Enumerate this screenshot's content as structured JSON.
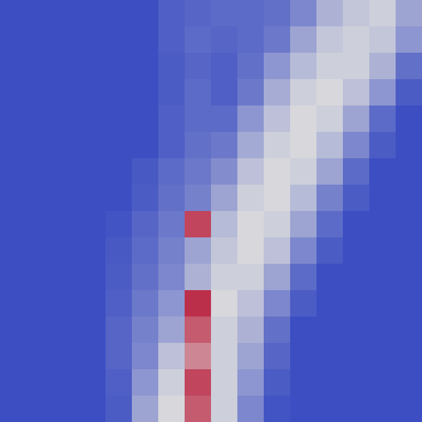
{
  "chart_data": {
    "type": "heatmap",
    "tick_labels": false,
    "grid": false,
    "zlim": [
      0,
      1
    ],
    "cells": [
      [
        0,
        0,
        0,
        0,
        0,
        0,
        0.06,
        0.08,
        0.1,
        0.1,
        0.12,
        0.2,
        0.35,
        0.42,
        0.45,
        0.3
      ],
      [
        0,
        0,
        0,
        0,
        0,
        0,
        0.06,
        0.1,
        0.08,
        0.1,
        0.15,
        0.3,
        0.42,
        0.45,
        0.42,
        0.25
      ],
      [
        0,
        0,
        0,
        0,
        0,
        0,
        0.05,
        0.08,
        0.06,
        0.12,
        0.25,
        0.38,
        0.45,
        0.45,
        0.35,
        0.12
      ],
      [
        0,
        0,
        0,
        0,
        0,
        0,
        0.05,
        0.1,
        0.06,
        0.15,
        0.33,
        0.45,
        0.48,
        0.4,
        0.25,
        0.05
      ],
      [
        0,
        0,
        0,
        0,
        0,
        0,
        0.06,
        0.1,
        0.1,
        0.25,
        0.4,
        0.48,
        0.45,
        0.3,
        0.1,
        0
      ],
      [
        0,
        0,
        0,
        0,
        0,
        0,
        0.06,
        0.12,
        0.15,
        0.32,
        0.45,
        0.48,
        0.38,
        0.2,
        0.05,
        0
      ],
      [
        0,
        0,
        0,
        0,
        0,
        0.04,
        0.1,
        0.15,
        0.22,
        0.4,
        0.48,
        0.45,
        0.3,
        0.1,
        0,
        0
      ],
      [
        0,
        0,
        0,
        0,
        0,
        0.05,
        0.12,
        0.18,
        0.3,
        0.45,
        0.48,
        0.38,
        0.18,
        0.05,
        0,
        0
      ],
      [
        0,
        0,
        0,
        0,
        0.02,
        0.08,
        0.15,
        0.85,
        0.38,
        0.48,
        0.45,
        0.3,
        0.1,
        0,
        0,
        0
      ],
      [
        0,
        0,
        0,
        0,
        0.04,
        0.1,
        0.18,
        0.3,
        0.42,
        0.48,
        0.4,
        0.2,
        0.05,
        0,
        0,
        0
      ],
      [
        0,
        0,
        0,
        0,
        0.05,
        0.12,
        0.2,
        0.35,
        0.45,
        0.45,
        0.3,
        0.1,
        0,
        0,
        0,
        0
      ],
      [
        0,
        0,
        0,
        0,
        0.06,
        0.15,
        0.25,
        0.9,
        0.48,
        0.4,
        0.2,
        0.05,
        0,
        0,
        0,
        0
      ],
      [
        0,
        0,
        0,
        0,
        0.08,
        0.18,
        0.3,
        0.8,
        0.45,
        0.35,
        0.12,
        0,
        0,
        0,
        0,
        0
      ],
      [
        0,
        0,
        0,
        0,
        0.08,
        0.2,
        0.4,
        0.7,
        0.45,
        0.3,
        0.08,
        0,
        0,
        0,
        0,
        0
      ],
      [
        0,
        0,
        0,
        0,
        0.06,
        0.25,
        0.45,
        0.85,
        0.45,
        0.25,
        0.05,
        0,
        0,
        0,
        0,
        0
      ],
      [
        0,
        0,
        0,
        0,
        0.05,
        0.3,
        0.48,
        0.8,
        0.45,
        0.2,
        0.02,
        0,
        0,
        0,
        0,
        0
      ]
    ]
  }
}
